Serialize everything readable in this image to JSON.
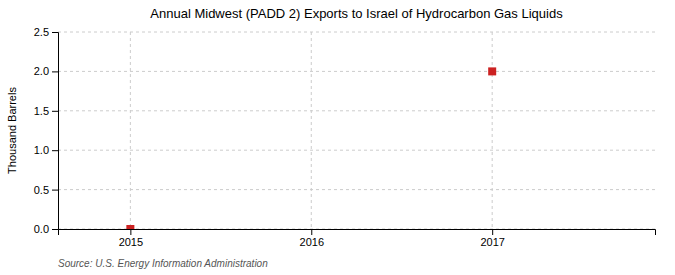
{
  "chart_data": {
    "type": "scatter",
    "title": "Annual Midwest (PADD 2) Exports to Israel of Hydrocarbon Gas Liquids",
    "ylabel": "Thousand Barrels",
    "source": "Source: U.S. Energy Information Administration",
    "x": [
      2015,
      2017
    ],
    "values": [
      0.0,
      2.0
    ],
    "color": "#cc2222",
    "marker": "square",
    "xlim": [
      2014.6,
      2017.9
    ],
    "ylim": [
      0.0,
      2.5
    ],
    "xticks": [
      2015,
      2016,
      2017
    ],
    "yticks": [
      {
        "value": 0.0,
        "label": "0.0"
      },
      0.5,
      {
        "value": 1.0,
        "label": "1.0"
      },
      1.5,
      {
        "value": 2.0,
        "label": "2.0"
      },
      2.5
    ],
    "grid": true
  }
}
